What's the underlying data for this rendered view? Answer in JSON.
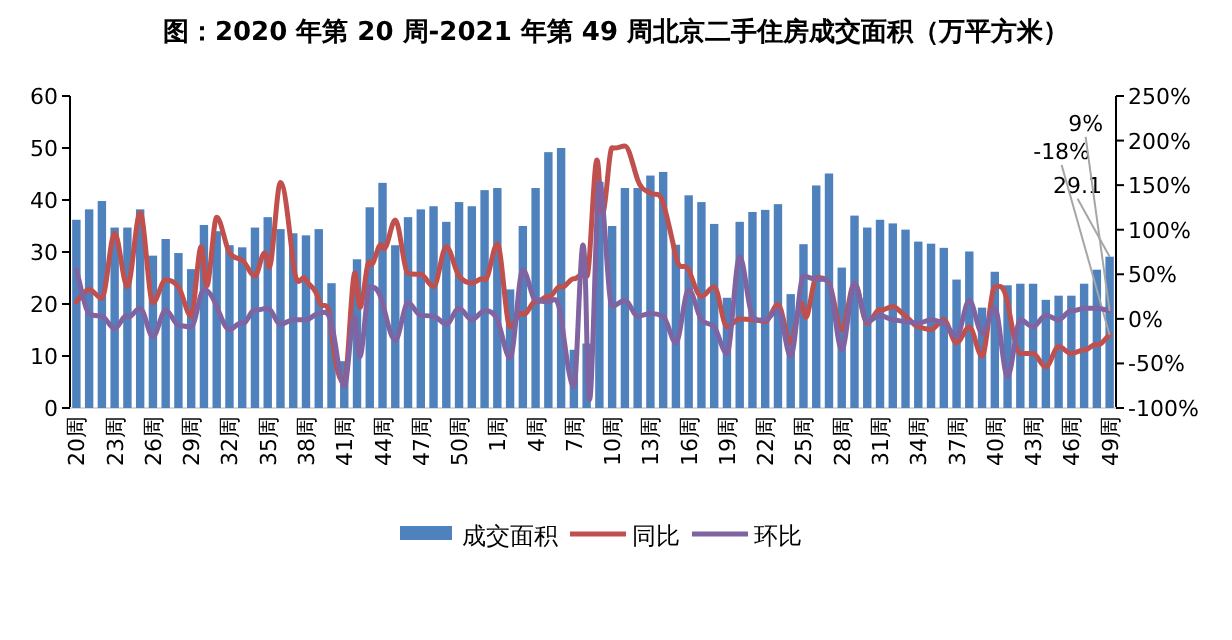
{
  "chart_data": {
    "type": "bar",
    "title": "图：2020 年第 20 周-2021 年第 49 周北京二手住房成交面积（万平方米）",
    "categories": [
      "20周",
      null,
      null,
      "23周",
      null,
      null,
      "26周",
      null,
      null,
      "29周",
      null,
      null,
      "32周",
      null,
      null,
      "35周",
      null,
      null,
      "38周",
      null,
      null,
      "41周",
      null,
      null,
      "44周",
      null,
      null,
      "47周",
      null,
      null,
      "50周",
      null,
      null,
      "1周",
      null,
      null,
      "4周",
      null,
      null,
      "7周",
      null,
      null,
      "10周",
      null,
      null,
      "13周",
      null,
      null,
      "16周",
      null,
      null,
      "19周",
      null,
      null,
      "22周",
      null,
      null,
      "25周",
      null,
      null,
      "28周",
      null,
      null,
      "31周",
      null,
      null,
      "34周",
      null,
      null,
      "37周",
      null,
      null,
      "40周",
      null,
      null,
      "43周",
      null,
      null,
      "46周",
      null,
      null,
      "49周"
    ],
    "series": [
      {
        "name": "成交面积",
        "color": "#4f81bd",
        "values": [
          36.2,
          38.2,
          39.8,
          34.7,
          34.7,
          38.2,
          29.3,
          32.5,
          29.8,
          26.7,
          35.2,
          34,
          31.3,
          30.9,
          34.7,
          36.7,
          34.4,
          33.6,
          33.2,
          34.4,
          24,
          9,
          28.6,
          38.6,
          43.3,
          31.3,
          36.7,
          38.2,
          38.8,
          35.8,
          39.6,
          38.8,
          41.9,
          42.3,
          22.8,
          35,
          42.3,
          49.2,
          50,
          11.2,
          12.4,
          43.5,
          35,
          42.3,
          42.3,
          44.7,
          45.4,
          31.4,
          40.9,
          39.6,
          35.4,
          21.2,
          35.8,
          37.7,
          38.1,
          39.2,
          21.9,
          31.5,
          42.8,
          45.1,
          27,
          37,
          34.7,
          36.2,
          35.5,
          34.3,
          32,
          31.6,
          30.8,
          24.7,
          30.1,
          19.3,
          26.2,
          23.6,
          23.9,
          23.9,
          20.8,
          21.6,
          21.6,
          23.9,
          26.6,
          29.1
        ],
        "value_labels": [
          null,
          null,
          null,
          null,
          null,
          null,
          null,
          null,
          null,
          null,
          null,
          null,
          null,
          null,
          null,
          null,
          null,
          null,
          null,
          null,
          null,
          null,
          null,
          null,
          null,
          null,
          null,
          null,
          null,
          null,
          null,
          null,
          null,
          null,
          null,
          null,
          null,
          null,
          null,
          null,
          null,
          null,
          null,
          null,
          null,
          null,
          null,
          null,
          null,
          null,
          null,
          null,
          null,
          null,
          null,
          null,
          null,
          null,
          null,
          null,
          null,
          null,
          null,
          null,
          null,
          null,
          null,
          null,
          null,
          null,
          null,
          null,
          null,
          null,
          null,
          null,
          null,
          null,
          null,
          null,
          null,
          "29.1"
        ]
      },
      {
        "name": "同比",
        "type": "line",
        "axis": "y2",
        "color": "#c0504d",
        "values": [
          19,
          33,
          23,
          96,
          36,
          119,
          18,
          44,
          36,
          3,
          59,
          114,
          74,
          66,
          48,
          63,
          153,
          63,
          44,
          21,
          -12,
          -72,
          36,
          63,
          81,
          111,
          51,
          50,
          36,
          81,
          48,
          40,
          44,
          84,
          -9,
          6,
          19,
          25,
          36,
          45,
          48,
          153,
          192,
          194,
          156,
          141,
          130,
          70,
          55,
          25,
          36,
          -9,
          0,
          -1,
          -3,
          16,
          -27,
          10,
          46,
          40,
          -12,
          40,
          -5,
          10,
          14,
          3,
          -9,
          -12,
          -1,
          -27,
          -9,
          -42,
          36,
          18,
          -39,
          -39,
          -54,
          -31,
          -39,
          -35,
          -29,
          -18
        ],
        "value_labels": [
          null,
          null,
          null,
          null,
          null,
          null,
          null,
          null,
          null,
          null,
          null,
          null,
          null,
          null,
          null,
          null,
          null,
          null,
          null,
          null,
          null,
          null,
          null,
          null,
          null,
          null,
          null,
          null,
          null,
          null,
          null,
          null,
          null,
          null,
          null,
          null,
          null,
          null,
          null,
          null,
          null,
          null,
          null,
          null,
          null,
          null,
          null,
          null,
          null,
          null,
          null,
          null,
          null,
          null,
          null,
          null,
          null,
          null,
          null,
          null,
          null,
          null,
          null,
          null,
          null,
          null,
          null,
          null,
          null,
          null,
          null,
          null,
          null,
          null,
          null,
          null,
          null,
          null,
          null,
          null,
          null,
          "-18%"
        ]
      },
      {
        "name": "环比",
        "type": "line",
        "axis": "y2",
        "color": "#8064a2",
        "values": [
          55,
          6,
          3,
          -11,
          3,
          12,
          -20,
          10,
          -7,
          -9,
          33,
          14,
          -12,
          -5,
          10,
          12,
          -6,
          -1,
          -1,
          6,
          -5,
          -76,
          -20,
          36,
          18,
          -24,
          18,
          4,
          3,
          -6,
          12,
          -1,
          9,
          -1,
          -44,
          55,
          21,
          19,
          1,
          -76,
          -12,
          153,
          14,
          21,
          3,
          6,
          3,
          -27,
          33,
          -1,
          -9,
          -39,
          70,
          3,
          -1,
          10,
          -42,
          48,
          44,
          40,
          -35,
          40,
          -3,
          4,
          -1,
          -3,
          -5,
          -1,
          -5,
          -20,
          21,
          -16,
          12,
          -65,
          -1,
          -9,
          4,
          -1,
          9,
          12,
          12,
          9
        ],
        "value_labels": [
          null,
          null,
          null,
          null,
          null,
          null,
          null,
          null,
          null,
          null,
          null,
          null,
          null,
          null,
          null,
          null,
          null,
          null,
          null,
          null,
          null,
          null,
          null,
          null,
          null,
          null,
          null,
          null,
          null,
          null,
          null,
          null,
          null,
          null,
          null,
          null,
          null,
          null,
          null,
          null,
          null,
          null,
          null,
          null,
          null,
          null,
          null,
          null,
          null,
          null,
          null,
          null,
          null,
          null,
          null,
          null,
          null,
          null,
          null,
          null,
          null,
          null,
          null,
          null,
          null,
          null,
          null,
          null,
          null,
          null,
          null,
          null,
          null,
          null,
          null,
          null,
          null,
          null,
          null,
          null,
          null,
          "9%"
        ]
      }
    ],
    "ylim": [
      0,
      60
    ],
    "yticks": [
      0,
      10,
      20,
      30,
      40,
      50,
      60
    ],
    "y2lim": [
      -100,
      250
    ],
    "y2ticks": [
      {
        "value": -100,
        "label": "-100%"
      },
      {
        "value": -50,
        "label": "-50%"
      },
      {
        "value": 0,
        "label": "0%"
      },
      {
        "value": 50,
        "label": "50%"
      },
      {
        "value": 100,
        "label": "100%"
      },
      {
        "value": 150,
        "label": "150%"
      },
      {
        "value": 200,
        "label": "200%"
      },
      {
        "value": 250,
        "label": "250%"
      }
    ],
    "legend": "bottom"
  }
}
